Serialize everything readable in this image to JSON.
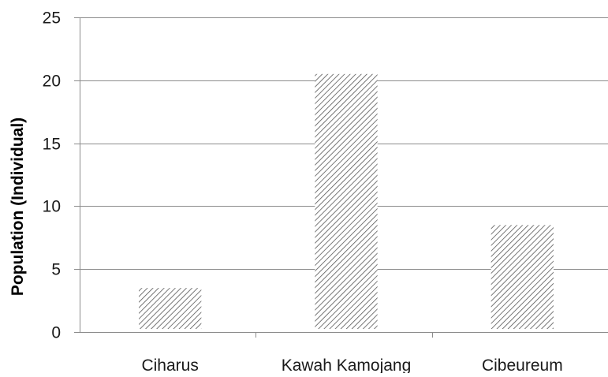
{
  "chart_data": {
    "type": "bar",
    "title": "",
    "xlabel": "",
    "ylabel": "Population (Individual)",
    "categories": [
      "Ciharus",
      "Kawah Kamojang",
      "Cibeureum"
    ],
    "values": [
      3.5,
      20.5,
      8.5
    ],
    "ylim": [
      0,
      25
    ],
    "yticks": [
      "0",
      "5",
      "10",
      "15",
      "20",
      "25"
    ],
    "grid": true,
    "legend": "none",
    "bar_fill": "diagonal hatch",
    "colors": {
      "hatch": "#555555",
      "grid": "#8c8c8c",
      "axis": "#8c8c8c",
      "text": "#1a1a1a"
    }
  }
}
